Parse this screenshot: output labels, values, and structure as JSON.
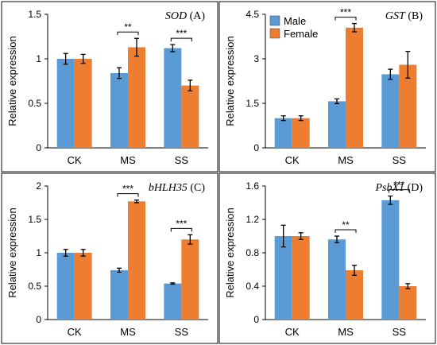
{
  "chart_data": [
    {
      "type": "bar",
      "gene": "SOD",
      "panel": "(A)",
      "ylabel": "Relative expression",
      "categories": [
        "CK",
        "MS",
        "SS"
      ],
      "ylim": [
        0,
        1.5
      ],
      "yticks": [
        "0",
        "0.5",
        "1",
        "1.5"
      ],
      "series": [
        {
          "name": "Male",
          "values": [
            1.0,
            0.84,
            1.12
          ],
          "errors": [
            0.06,
            0.06,
            0.04
          ]
        },
        {
          "name": "Female",
          "values": [
            1.0,
            1.13,
            0.7
          ],
          "errors": [
            0.05,
            0.1,
            0.06
          ]
        }
      ],
      "significance": [
        {
          "category": "MS",
          "label": "**"
        },
        {
          "category": "SS",
          "label": "***"
        }
      ]
    },
    {
      "type": "bar",
      "gene": "GST",
      "panel": "(B)",
      "ylabel": "Relative expression",
      "categories": [
        "CK",
        "MS",
        "SS"
      ],
      "ylim": [
        0,
        4.5
      ],
      "yticks": [
        "0",
        "1.5",
        "3",
        "4.5"
      ],
      "series": [
        {
          "name": "Male",
          "values": [
            1.0,
            1.57,
            2.48
          ],
          "errors": [
            0.08,
            0.08,
            0.17
          ]
        },
        {
          "name": "Female",
          "values": [
            1.0,
            4.05,
            2.8
          ],
          "errors": [
            0.08,
            0.14,
            0.45
          ]
        }
      ],
      "significance": [
        {
          "category": "MS",
          "label": "***"
        }
      ],
      "legend": {
        "position": "top-left",
        "entries": [
          "Male",
          "Female"
        ]
      }
    },
    {
      "type": "bar",
      "gene": "bHLH35",
      "panel": "(C)",
      "ylabel": "Relative expression",
      "categories": [
        "CK",
        "MS",
        "SS"
      ],
      "ylim": [
        0,
        2
      ],
      "yticks": [
        "0",
        "0.5",
        "1",
        "1.5",
        "2"
      ],
      "series": [
        {
          "name": "Male",
          "values": [
            1.0,
            0.74,
            0.54
          ],
          "errors": [
            0.05,
            0.03,
            0.01
          ]
        },
        {
          "name": "Female",
          "values": [
            1.0,
            1.77,
            1.2
          ],
          "errors": [
            0.05,
            0.02,
            0.07
          ]
        }
      ],
      "significance": [
        {
          "category": "MS",
          "label": "***"
        },
        {
          "category": "SS",
          "label": "***"
        }
      ]
    },
    {
      "type": "bar",
      "gene": "PsbX1",
      "panel": "(D)",
      "ylabel": "Relative expression",
      "categories": [
        "CK",
        "MS",
        "SS"
      ],
      "ylim": [
        0,
        1.6
      ],
      "yticks": [
        "0",
        "0.4",
        "0.8",
        "1.2",
        "1.6"
      ],
      "series": [
        {
          "name": "Male",
          "values": [
            1.0,
            0.96,
            1.43
          ],
          "errors": [
            0.13,
            0.04,
            0.05
          ]
        },
        {
          "name": "Female",
          "values": [
            1.0,
            0.59,
            0.4
          ],
          "errors": [
            0.04,
            0.06,
            0.03
          ]
        }
      ],
      "significance": [
        {
          "category": "MS",
          "label": "**"
        },
        {
          "category": "SS",
          "label": "***"
        }
      ]
    }
  ],
  "colors": {
    "male": "#5B9BD5",
    "female": "#ED7D31"
  }
}
